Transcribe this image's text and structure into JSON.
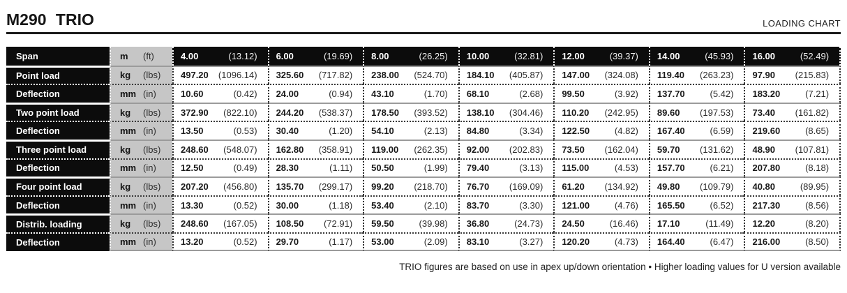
{
  "header": {
    "title": "M290 TRIO",
    "right_label": "LOADING CHART"
  },
  "colors": {
    "row_black": "#0c0c0c",
    "unit_gray": "#c6c6c6",
    "separator": "#9b9b9b"
  },
  "table": {
    "rows": [
      {
        "type": "span",
        "label": "Span",
        "unit_metric": "m",
        "unit_imperial": "(ft)",
        "values": [
          {
            "m": "4.00",
            "i": "(13.12)"
          },
          {
            "m": "6.00",
            "i": "(19.69)"
          },
          {
            "m": "8.00",
            "i": "(26.25)"
          },
          {
            "m": "10.00",
            "i": "(32.81)"
          },
          {
            "m": "12.00",
            "i": "(39.37)"
          },
          {
            "m": "14.00",
            "i": "(45.93)"
          },
          {
            "m": "16.00",
            "i": "(52.49)"
          }
        ]
      },
      {
        "type": "load",
        "label": "Point load",
        "unit_metric": "kg",
        "unit_imperial": "(lbs)",
        "values": [
          {
            "m": "497.20",
            "i": "(1096.14)"
          },
          {
            "m": "325.60",
            "i": "(717.82)"
          },
          {
            "m": "238.00",
            "i": "(524.70)"
          },
          {
            "m": "184.10",
            "i": "(405.87)"
          },
          {
            "m": "147.00",
            "i": "(324.08)"
          },
          {
            "m": "119.40",
            "i": "(263.23)"
          },
          {
            "m": "97.90",
            "i": "(215.83)"
          }
        ]
      },
      {
        "type": "deflection",
        "label": "Deflection",
        "unit_metric": "mm",
        "unit_imperial": "(in)",
        "values": [
          {
            "m": "10.60",
            "i": "(0.42)"
          },
          {
            "m": "24.00",
            "i": "(0.94)"
          },
          {
            "m": "43.10",
            "i": "(1.70)"
          },
          {
            "m": "68.10",
            "i": "(2.68)"
          },
          {
            "m": "99.50",
            "i": "(3.92)"
          },
          {
            "m": "137.70",
            "i": "(5.42)"
          },
          {
            "m": "183.20",
            "i": "(7.21)"
          }
        ]
      },
      {
        "type": "load",
        "label": "Two point load",
        "unit_metric": "kg",
        "unit_imperial": "(lbs)",
        "values": [
          {
            "m": "372.90",
            "i": "(822.10)"
          },
          {
            "m": "244.20",
            "i": "(538.37)"
          },
          {
            "m": "178.50",
            "i": "(393.52)"
          },
          {
            "m": "138.10",
            "i": "(304.46)"
          },
          {
            "m": "110.20",
            "i": "(242.95)"
          },
          {
            "m": "89.60",
            "i": "(197.53)"
          },
          {
            "m": "73.40",
            "i": "(161.82)"
          }
        ]
      },
      {
        "type": "deflection",
        "label": "Deflection",
        "unit_metric": "mm",
        "unit_imperial": "(in)",
        "values": [
          {
            "m": "13.50",
            "i": "(0.53)"
          },
          {
            "m": "30.40",
            "i": "(1.20)"
          },
          {
            "m": "54.10",
            "i": "(2.13)"
          },
          {
            "m": "84.80",
            "i": "(3.34)"
          },
          {
            "m": "122.50",
            "i": "(4.82)"
          },
          {
            "m": "167.40",
            "i": "(6.59)"
          },
          {
            "m": "219.60",
            "i": "(8.65)"
          }
        ]
      },
      {
        "type": "load",
        "label": "Three point load",
        "unit_metric": "kg",
        "unit_imperial": "(lbs)",
        "values": [
          {
            "m": "248.60",
            "i": "(548.07)"
          },
          {
            "m": "162.80",
            "i": "(358.91)"
          },
          {
            "m": "119.00",
            "i": "(262.35)"
          },
          {
            "m": "92.00",
            "i": "(202.83)"
          },
          {
            "m": "73.50",
            "i": "(162.04)"
          },
          {
            "m": "59.70",
            "i": "(131.62)"
          },
          {
            "m": "48.90",
            "i": "(107.81)"
          }
        ]
      },
      {
        "type": "deflection",
        "label": "Deflection",
        "unit_metric": "mm",
        "unit_imperial": "(in)",
        "values": [
          {
            "m": "12.50",
            "i": "(0.49)"
          },
          {
            "m": "28.30",
            "i": "(1.11)"
          },
          {
            "m": "50.50",
            "i": "(1.99)"
          },
          {
            "m": "79.40",
            "i": "(3.13)"
          },
          {
            "m": "115.00",
            "i": "(4.53)"
          },
          {
            "m": "157.70",
            "i": "(6.21)"
          },
          {
            "m": "207.80",
            "i": "(8.18)"
          }
        ]
      },
      {
        "type": "load",
        "label": "Four point load",
        "unit_metric": "kg",
        "unit_imperial": "(lbs)",
        "values": [
          {
            "m": "207.20",
            "i": "(456.80)"
          },
          {
            "m": "135.70",
            "i": "(299.17)"
          },
          {
            "m": "99.20",
            "i": "(218.70)"
          },
          {
            "m": "76.70",
            "i": "(169.09)"
          },
          {
            "m": "61.20",
            "i": "(134.92)"
          },
          {
            "m": "49.80",
            "i": "(109.79)"
          },
          {
            "m": "40.80",
            "i": "(89.95)"
          }
        ]
      },
      {
        "type": "deflection",
        "label": "Deflection",
        "unit_metric": "mm",
        "unit_imperial": "(in)",
        "values": [
          {
            "m": "13.30",
            "i": "(0.52)"
          },
          {
            "m": "30.00",
            "i": "(1.18)"
          },
          {
            "m": "53.40",
            "i": "(2.10)"
          },
          {
            "m": "83.70",
            "i": "(3.30)"
          },
          {
            "m": "121.00",
            "i": "(4.76)"
          },
          {
            "m": "165.50",
            "i": "(6.52)"
          },
          {
            "m": "217.30",
            "i": "(8.56)"
          }
        ]
      },
      {
        "type": "load",
        "label": "Distrib. loading",
        "unit_metric": "kg",
        "unit_imperial": "(lbs)",
        "values": [
          {
            "m": "248.60",
            "i": "(167.05)"
          },
          {
            "m": "108.50",
            "i": "(72.91)"
          },
          {
            "m": "59.50",
            "i": "(39.98)"
          },
          {
            "m": "36.80",
            "i": "(24.73)"
          },
          {
            "m": "24.50",
            "i": "(16.46)"
          },
          {
            "m": "17.10",
            "i": "(11.49)"
          },
          {
            "m": "12.20",
            "i": "(8.20)"
          }
        ]
      },
      {
        "type": "deflection",
        "label": "Deflection",
        "unit_metric": "mm",
        "unit_imperial": "(in)",
        "values": [
          {
            "m": "13.20",
            "i": "(0.52)"
          },
          {
            "m": "29.70",
            "i": "(1.17)"
          },
          {
            "m": "53.00",
            "i": "(2.09)"
          },
          {
            "m": "83.10",
            "i": "(3.27)"
          },
          {
            "m": "120.20",
            "i": "(4.73)"
          },
          {
            "m": "164.40",
            "i": "(6.47)"
          },
          {
            "m": "216.00",
            "i": "(8.50)"
          }
        ]
      }
    ]
  },
  "footer": {
    "note": "TRIO figures are based on use in apex up/down orientation • Higher loading values for U version available"
  }
}
